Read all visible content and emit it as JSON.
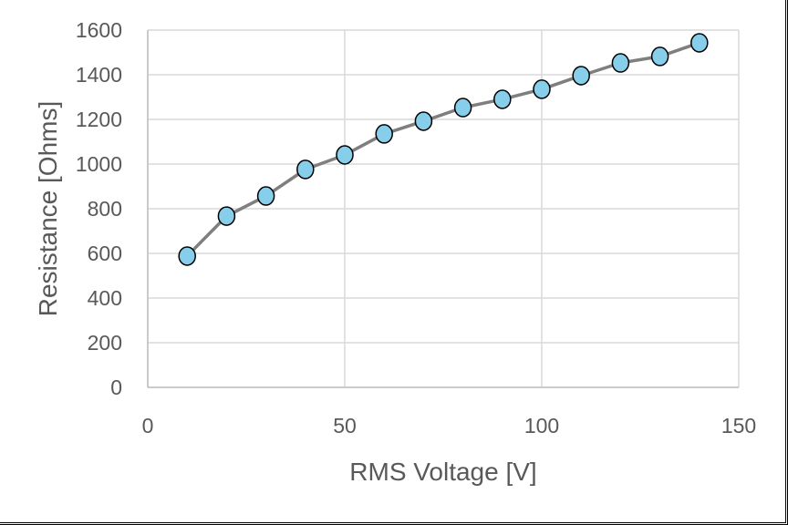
{
  "chart_data": {
    "type": "line",
    "title": "",
    "xlabel": "RMS Voltage [V]",
    "ylabel": "Resistance [Ohms]",
    "xlim": [
      0,
      150
    ],
    "ylim": [
      0,
      1600
    ],
    "xticks": [
      0,
      50,
      100,
      150
    ],
    "yticks": [
      0,
      200,
      400,
      600,
      800,
      1000,
      1200,
      1400,
      1600
    ],
    "grid": true,
    "legend": null,
    "series": [
      {
        "name": "Resistance",
        "line_color": "#7f7f7f",
        "marker": "circle",
        "marker_fill": "#87ceeb",
        "marker_edge": "#000000",
        "x": [
          10,
          20,
          30,
          40,
          50,
          60,
          70,
          80,
          90,
          100,
          110,
          120,
          130,
          140
        ],
        "y": [
          588,
          767,
          857,
          976,
          1041,
          1135,
          1192,
          1253,
          1290,
          1335,
          1396,
          1453,
          1482,
          1543
        ]
      }
    ]
  },
  "labels": {
    "xlabel": "RMS Voltage [V]",
    "ylabel": "Resistance [Ohms]"
  }
}
